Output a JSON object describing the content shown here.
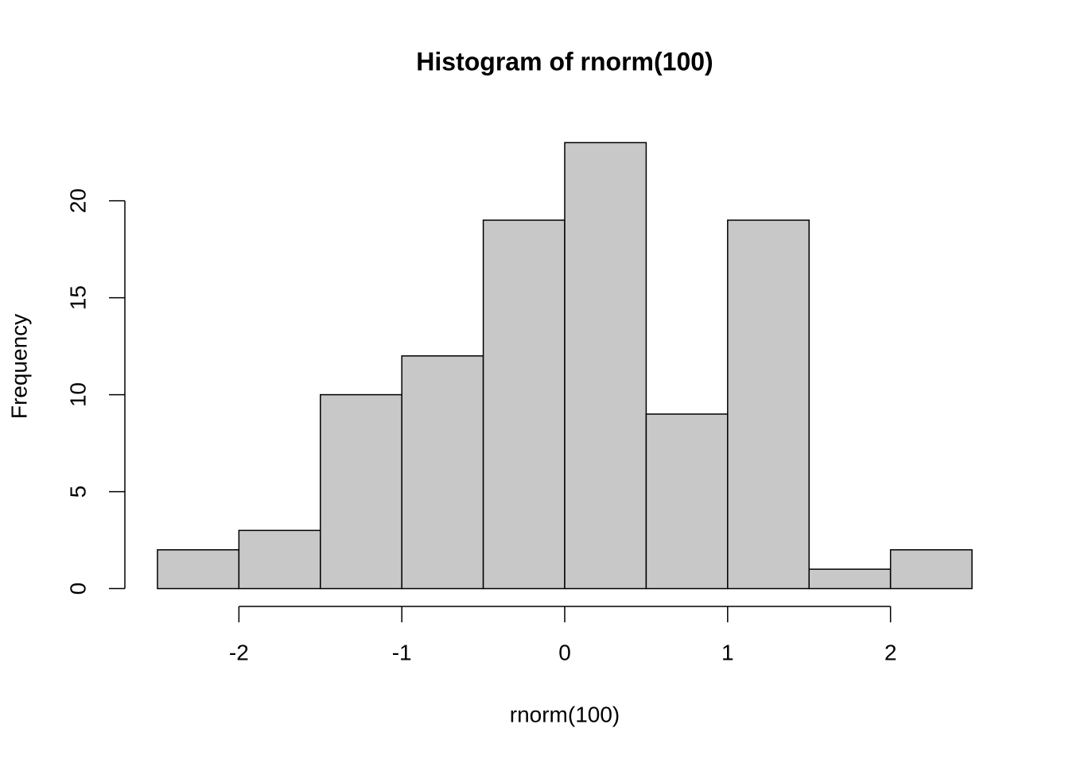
{
  "chart_data": {
    "type": "histogram",
    "title": "Histogram of rnorm(100)",
    "x_label": "rnorm(100)",
    "y_label": "Frequency",
    "bins": [
      -2.5,
      -2,
      -1.5,
      -1,
      -0.5,
      0,
      0.5,
      1,
      1.5,
      2,
      2.5
    ],
    "values": [
      2,
      3,
      10,
      12,
      19,
      23,
      9,
      19,
      1,
      2
    ],
    "color": "#c8c8c8",
    "xlim": [
      -2.7,
      2.7
    ],
    "xticks": [
      -2,
      -1,
      0,
      1,
      2
    ],
    "ylim": [
      -0.92,
      23.92
    ],
    "yticks": [
      0,
      5,
      10,
      15,
      20
    ]
  }
}
